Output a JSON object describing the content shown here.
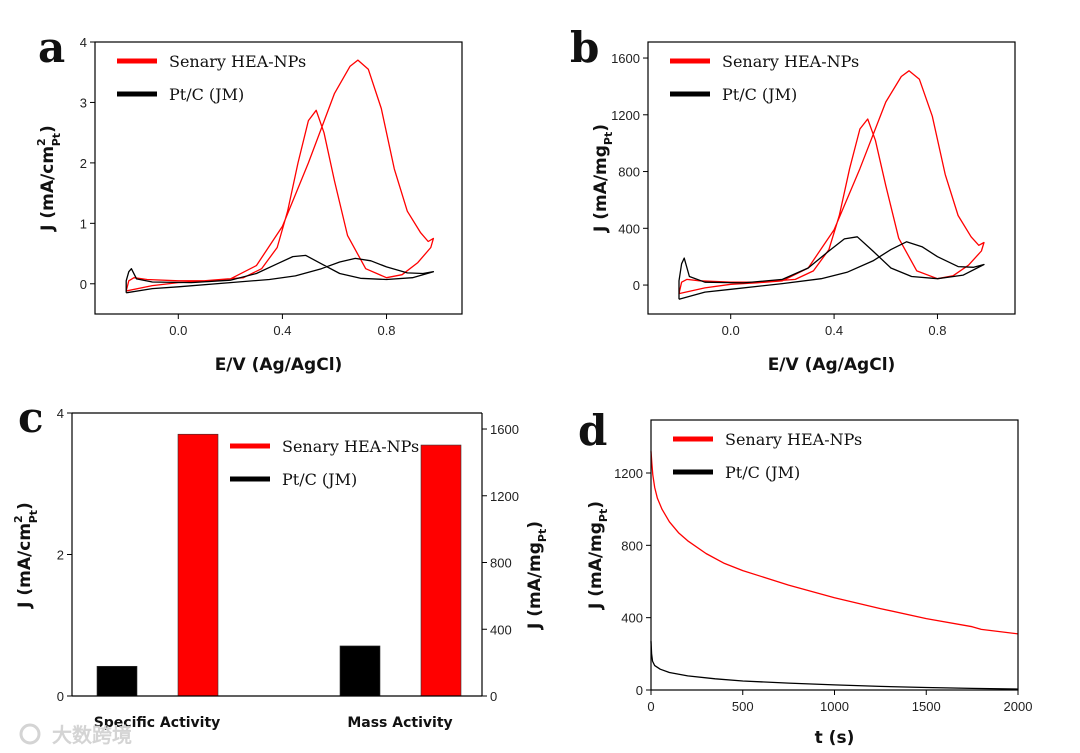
{
  "colors": {
    "hea": "#ff0000",
    "ptc": "#000000",
    "axis": "#000000"
  },
  "watermark": "大数跨境",
  "chart_data": [
    {
      "panel": "a",
      "type": "line",
      "xlabel": "E/V (Ag/AgCl)",
      "ylabel": {
        "main": "J (mA/cm",
        "sup": "2",
        "sub": "Pt",
        "end": ")"
      },
      "xlim": [
        -0.32,
        1.09
      ],
      "ylim": [
        -0.5,
        4
      ],
      "xticks": [
        "0.0",
        "0.4",
        "0.8"
      ],
      "yticks": [
        "0",
        "1",
        "2",
        "3",
        "4"
      ],
      "legend": [
        "Senary HEA-NPs",
        "Pt/C (JM)"
      ],
      "legend_position": "top-left",
      "series": [
        {
          "name": "Senary HEA-NPs",
          "color_key": "hea",
          "points": [
            [
              -0.2,
              -0.12
            ],
            [
              -0.1,
              -0.03
            ],
            [
              0,
              0.02
            ],
            [
              0.1,
              0.04
            ],
            [
              0.2,
              0.08
            ],
            [
              0.3,
              0.3
            ],
            [
              0.4,
              0.95
            ],
            [
              0.5,
              2.0
            ],
            [
              0.6,
              3.15
            ],
            [
              0.66,
              3.6
            ],
            [
              0.69,
              3.7
            ],
            [
              0.73,
              3.55
            ],
            [
              0.78,
              2.9
            ],
            [
              0.83,
              1.9
            ],
            [
              0.88,
              1.2
            ],
            [
              0.93,
              0.85
            ],
            [
              0.96,
              0.7
            ],
            [
              0.98,
              0.75
            ],
            [
              0.97,
              0.6
            ],
            [
              0.92,
              0.35
            ],
            [
              0.86,
              0.15
            ],
            [
              0.8,
              0.1
            ],
            [
              0.72,
              0.25
            ],
            [
              0.65,
              0.8
            ],
            [
              0.6,
              1.7
            ],
            [
              0.56,
              2.5
            ],
            [
              0.53,
              2.87
            ],
            [
              0.5,
              2.7
            ],
            [
              0.46,
              2.0
            ],
            [
              0.42,
              1.2
            ],
            [
              0.38,
              0.6
            ],
            [
              0.32,
              0.25
            ],
            [
              0.25,
              0.1
            ],
            [
              0.1,
              0.05
            ],
            [
              0,
              0.05
            ],
            [
              -0.12,
              0.07
            ],
            [
              -0.17,
              0.1
            ],
            [
              -0.19,
              0.05
            ],
            [
              -0.2,
              -0.12
            ]
          ]
        },
        {
          "name": "Pt/C (JM)",
          "color_key": "ptc",
          "points": [
            [
              -0.2,
              -0.15
            ],
            [
              -0.1,
              -0.08
            ],
            [
              0,
              -0.05
            ],
            [
              0.2,
              0.02
            ],
            [
              0.35,
              0.07
            ],
            [
              0.45,
              0.13
            ],
            [
              0.55,
              0.25
            ],
            [
              0.62,
              0.36
            ],
            [
              0.68,
              0.42
            ],
            [
              0.74,
              0.38
            ],
            [
              0.8,
              0.28
            ],
            [
              0.88,
              0.18
            ],
            [
              0.94,
              0.17
            ],
            [
              0.98,
              0.2
            ],
            [
              0.9,
              0.1
            ],
            [
              0.8,
              0.07
            ],
            [
              0.7,
              0.09
            ],
            [
              0.62,
              0.17
            ],
            [
              0.55,
              0.33
            ],
            [
              0.49,
              0.47
            ],
            [
              0.44,
              0.45
            ],
            [
              0.38,
              0.33
            ],
            [
              0.3,
              0.17
            ],
            [
              0.2,
              0.06
            ],
            [
              0.05,
              0.02
            ],
            [
              -0.1,
              0.03
            ],
            [
              -0.16,
              0.08
            ],
            [
              -0.18,
              0.25
            ],
            [
              -0.19,
              0.2
            ],
            [
              -0.2,
              0.05
            ],
            [
              -0.2,
              -0.15
            ]
          ]
        }
      ]
    },
    {
      "panel": "b",
      "type": "line",
      "xlabel": "E/V (Ag/AgCl)",
      "ylabel": {
        "main": "J (mA/mg",
        "sub": "Pt",
        "end": ")"
      },
      "xlim": [
        -0.32,
        1.1
      ],
      "ylim": [
        -204,
        1713
      ],
      "xticks": [
        "0.0",
        "0.4",
        "0.8"
      ],
      "yticks": [
        "0",
        "400",
        "800",
        "1200",
        "1600"
      ],
      "legend": [
        "Senary HEA-NPs",
        "Pt/C (JM)"
      ],
      "legend_position": "top-left",
      "series": [
        {
          "name": "Senary HEA-NPs",
          "color_key": "hea",
          "points": [
            [
              -0.2,
              -60
            ],
            [
              -0.1,
              -20
            ],
            [
              0,
              5
            ],
            [
              0.1,
              15
            ],
            [
              0.2,
              30
            ],
            [
              0.3,
              120
            ],
            [
              0.4,
              390
            ],
            [
              0.5,
              820
            ],
            [
              0.6,
              1290
            ],
            [
              0.66,
              1470
            ],
            [
              0.69,
              1510
            ],
            [
              0.73,
              1450
            ],
            [
              0.78,
              1190
            ],
            [
              0.83,
              780
            ],
            [
              0.88,
              490
            ],
            [
              0.93,
              340
            ],
            [
              0.96,
              280
            ],
            [
              0.98,
              300
            ],
            [
              0.97,
              240
            ],
            [
              0.92,
              140
            ],
            [
              0.86,
              65
            ],
            [
              0.8,
              45
            ],
            [
              0.72,
              100
            ],
            [
              0.65,
              330
            ],
            [
              0.6,
              700
            ],
            [
              0.56,
              1020
            ],
            [
              0.53,
              1170
            ],
            [
              0.5,
              1100
            ],
            [
              0.46,
              820
            ],
            [
              0.42,
              490
            ],
            [
              0.38,
              250
            ],
            [
              0.32,
              100
            ],
            [
              0.25,
              40
            ],
            [
              0.1,
              20
            ],
            [
              0,
              20
            ],
            [
              -0.12,
              30
            ],
            [
              -0.17,
              40
            ],
            [
              -0.19,
              20
            ],
            [
              -0.2,
              -60
            ]
          ]
        },
        {
          "name": "Pt/C (JM)",
          "color_key": "ptc",
          "points": [
            [
              -0.2,
              -100
            ],
            [
              -0.1,
              -50
            ],
            [
              0,
              -30
            ],
            [
              0.2,
              10
            ],
            [
              0.35,
              45
            ],
            [
              0.45,
              90
            ],
            [
              0.55,
              170
            ],
            [
              0.62,
              250
            ],
            [
              0.68,
              305
            ],
            [
              0.74,
              270
            ],
            [
              0.8,
              200
            ],
            [
              0.88,
              130
            ],
            [
              0.94,
              125
            ],
            [
              0.98,
              145
            ],
            [
              0.9,
              70
            ],
            [
              0.8,
              45
            ],
            [
              0.7,
              60
            ],
            [
              0.62,
              120
            ],
            [
              0.55,
              240
            ],
            [
              0.49,
              340
            ],
            [
              0.44,
              325
            ],
            [
              0.38,
              240
            ],
            [
              0.3,
              120
            ],
            [
              0.2,
              40
            ],
            [
              0.05,
              15
            ],
            [
              -0.1,
              20
            ],
            [
              -0.16,
              60
            ],
            [
              -0.18,
              190
            ],
            [
              -0.19,
              150
            ],
            [
              -0.2,
              30
            ],
            [
              -0.2,
              -100
            ]
          ]
        }
      ]
    },
    {
      "panel": "c",
      "type": "bar",
      "categories": [
        "Specific Activity",
        "Mass Activity"
      ],
      "ylabel_left": {
        "main": "J (mA/cm",
        "sup": "2",
        "sub": "Pt",
        "end": ")"
      },
      "ylabel_right": {
        "main": "J (mA/mg",
        "sub": "Pt",
        "end": ")"
      },
      "ylim_left": [
        0,
        4
      ],
      "ylim_right": [
        0,
        1696
      ],
      "yticks_left": [
        "0",
        "2",
        "4"
      ],
      "yticks_right": [
        "0",
        "400",
        "800",
        "1200",
        "1600"
      ],
      "legend": [
        "Senary HEA-NPs",
        "Pt/C (JM)"
      ],
      "legend_position": "top-right",
      "series": [
        {
          "name": "Pt/C (JM)",
          "color_key": "ptc",
          "values": [
            0.42,
            300
          ]
        },
        {
          "name": "Senary HEA-NPs",
          "color_key": "hea",
          "values": [
            3.7,
            1504
          ]
        }
      ],
      "axis_of_category": [
        "left",
        "right"
      ]
    },
    {
      "panel": "d",
      "type": "line",
      "xlabel": "t (s)",
      "ylabel": {
        "main": "J (mA/mg",
        "sub": "Pt",
        "end": ")"
      },
      "xlim": [
        0,
        2000
      ],
      "ylim": [
        0,
        1493
      ],
      "xticks": [
        "0",
        "500",
        "1000",
        "1500",
        "2000"
      ],
      "yticks": [
        "0",
        "400",
        "800",
        "1200"
      ],
      "legend": [
        "Senary HEA-NPs",
        "Pt/C (JM)"
      ],
      "legend_position": "top-left",
      "series": [
        {
          "name": "Senary HEA-NPs",
          "color_key": "hea",
          "points": [
            [
              0,
              1320
            ],
            [
              5,
              1250
            ],
            [
              10,
              1190
            ],
            [
              20,
              1120
            ],
            [
              35,
              1060
            ],
            [
              60,
              1000
            ],
            [
              100,
              930
            ],
            [
              150,
              870
            ],
            [
              200,
              825
            ],
            [
              300,
              755
            ],
            [
              400,
              700
            ],
            [
              500,
              660
            ],
            [
              750,
              580
            ],
            [
              1000,
              510
            ],
            [
              1250,
              450
            ],
            [
              1500,
              395
            ],
            [
              1750,
              350
            ],
            [
              1800,
              335
            ],
            [
              2000,
              310
            ]
          ]
        },
        {
          "name": "Pt/C (JM)",
          "color_key": "ptc",
          "points": [
            [
              0,
              270
            ],
            [
              3,
              200
            ],
            [
              8,
              160
            ],
            [
              20,
              135
            ],
            [
              50,
              115
            ],
            [
              100,
              97
            ],
            [
              200,
              78
            ],
            [
              350,
              62
            ],
            [
              500,
              50
            ],
            [
              750,
              38
            ],
            [
              1000,
              28
            ],
            [
              1250,
              20
            ],
            [
              1500,
              14
            ],
            [
              1750,
              9
            ],
            [
              2000,
              5
            ]
          ]
        }
      ]
    }
  ]
}
